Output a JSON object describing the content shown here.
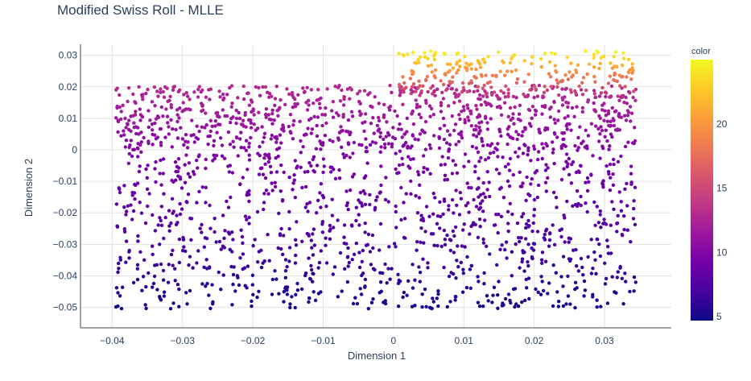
{
  "chart_data": {
    "type": "scatter",
    "title": "Modified Swiss Roll - MLLE",
    "xlabel": "Dimension 1",
    "ylabel": "Dimension 2",
    "xlim": [
      -0.0445,
      0.0395
    ],
    "ylim": [
      -0.0565,
      0.0335
    ],
    "x_ticks": [
      -0.04,
      -0.03,
      -0.02,
      -0.01,
      0,
      0.01,
      0.02,
      0.03
    ],
    "x_tick_labels": [
      "−0.04",
      "−0.03",
      "−0.02",
      "−0.01",
      "0",
      "0.01",
      "0.02",
      "0.03"
    ],
    "y_ticks": [
      0.03,
      0.02,
      0.01,
      0,
      -0.01,
      -0.02,
      -0.03,
      -0.04,
      -0.05
    ],
    "y_tick_labels": [
      "0.03",
      "0.02",
      "0.01",
      "0",
      "−0.01",
      "−0.02",
      "−0.03",
      "−0.04",
      "−0.05"
    ],
    "grid": true,
    "colorbar": {
      "title": "color",
      "range": [
        4.7,
        25.0
      ],
      "ticks": [
        5,
        10,
        15,
        20
      ],
      "tick_labels": [
        "5",
        "10",
        "15",
        "20"
      ],
      "colorscale": [
        "#0d0887",
        "#46039f",
        "#7201a8",
        "#9c179e",
        "#bd3786",
        "#d8576b",
        "#ed7953",
        "#fb9f3a",
        "#fdca26",
        "#f0f921"
      ]
    },
    "clusters": [
      {
        "x_range": [
          -0.0395,
          0.0345
        ],
        "y_range": [
          -0.0505,
          0.0
        ],
        "color_range": [
          5,
          10
        ],
        "count": 1100
      },
      {
        "x_range": [
          -0.0395,
          0.0345
        ],
        "y_range": [
          0.0,
          0.0205
        ],
        "color_range": [
          10,
          13
        ],
        "count": 850
      },
      {
        "x_range": [
          0.0005,
          0.0345
        ],
        "y_range": [
          0.0165,
          0.0315
        ],
        "color_range": [
          13,
          25
        ],
        "count": 260
      }
    ]
  }
}
